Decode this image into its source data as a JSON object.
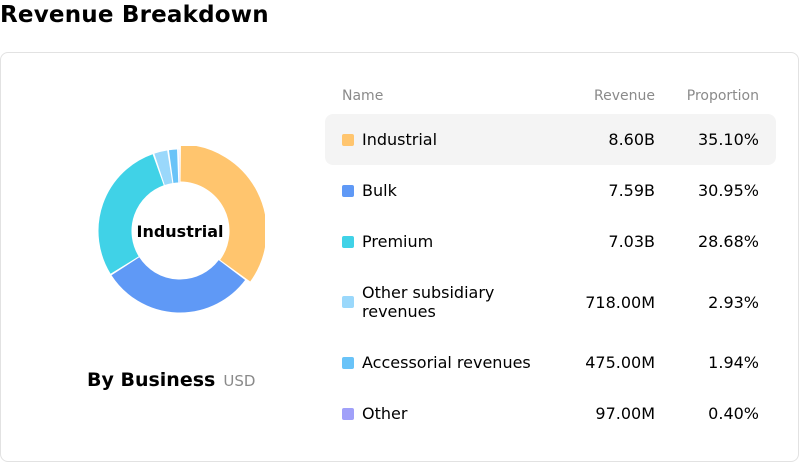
{
  "page": {
    "title": "Revenue Breakdown"
  },
  "chart": {
    "center_label": "Industrial",
    "caption": "By Business",
    "unit": "USD"
  },
  "table": {
    "headers": {
      "name": "Name",
      "revenue": "Revenue",
      "proportion": "Proportion"
    },
    "rows": [
      {
        "name": "Industrial",
        "revenue": "8.60B",
        "proportion": "35.10%",
        "color": "#ffc56e",
        "selected": true
      },
      {
        "name": "Bulk",
        "revenue": "7.59B",
        "proportion": "30.95%",
        "color": "#5f99f6"
      },
      {
        "name": "Premium",
        "revenue": "7.03B",
        "proportion": "28.68%",
        "color": "#40d2e7"
      },
      {
        "name": "Other subsidiary revenues",
        "revenue": "718.00M",
        "proportion": "2.93%",
        "color": "#9ad8fb"
      },
      {
        "name": "Accessorial revenues",
        "revenue": "475.00M",
        "proportion": "1.94%",
        "color": "#69c3f8"
      },
      {
        "name": "Other",
        "revenue": "97.00M",
        "proportion": "0.40%",
        "color": "#a0a0f9"
      }
    ]
  },
  "chart_data": {
    "type": "pie",
    "categories": [
      "Industrial",
      "Bulk",
      "Premium",
      "Other subsidiary revenues",
      "Accessorial revenues",
      "Other"
    ],
    "values": [
      35.1,
      30.95,
      28.68,
      2.93,
      1.94,
      0.4
    ],
    "revenue": [
      "8.60B",
      "7.59B",
      "7.03B",
      "718.00M",
      "475.00M",
      "97.00M"
    ],
    "colors": [
      "#ffc56e",
      "#5f99f6",
      "#40d2e7",
      "#9ad8fb",
      "#69c3f8",
      "#a0a0f9"
    ],
    "selected": "Industrial"
  }
}
